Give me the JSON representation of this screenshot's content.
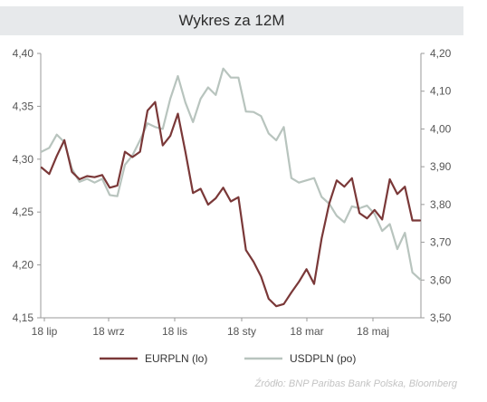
{
  "chart_data": {
    "type": "line",
    "title": "Wykres za 12M",
    "x_labels": [
      "18 lip",
      "18 wrz",
      "18 lis",
      "18 sty",
      "18 mar",
      "18 maj"
    ],
    "y_left": {
      "min": 4.15,
      "max": 4.4,
      "ticks": [
        "4,40",
        "4,35",
        "4,30",
        "4,25",
        "4,20",
        "4,15"
      ]
    },
    "y_right": {
      "min": 3.5,
      "max": 4.2,
      "ticks": [
        "4,20",
        "4,10",
        "4,00",
        "3,90",
        "3,80",
        "3,70",
        "3,60",
        "3,50"
      ]
    },
    "grid": false,
    "legend_position": "bottom",
    "series": [
      {
        "name": "EURPLN (lo)",
        "axis": "left",
        "color": "#7a3838",
        "values": [
          4.292,
          4.286,
          4.303,
          4.318,
          4.288,
          4.281,
          4.284,
          4.283,
          4.285,
          4.273,
          4.275,
          4.307,
          4.302,
          4.307,
          4.346,
          4.354,
          4.313,
          4.322,
          4.343,
          4.307,
          4.268,
          4.272,
          4.257,
          4.263,
          4.273,
          4.26,
          4.264,
          4.214,
          4.203,
          4.189,
          4.168,
          4.161,
          4.163,
          4.174,
          4.184,
          4.196,
          4.182,
          4.225,
          4.258,
          4.28,
          4.274,
          4.282,
          4.249,
          4.244,
          4.252,
          4.243,
          4.281,
          4.267,
          4.274,
          4.242,
          4.242
        ]
      },
      {
        "name": "USDPLN (po)",
        "axis": "right",
        "color": "#b8c4be",
        "values": [
          3.94,
          3.95,
          3.985,
          3.965,
          3.895,
          3.86,
          3.868,
          3.858,
          3.868,
          3.825,
          3.822,
          3.905,
          3.93,
          3.97,
          4.015,
          4.005,
          4.0,
          4.08,
          4.14,
          4.07,
          4.018,
          4.08,
          4.11,
          4.09,
          4.16,
          4.136,
          4.136,
          4.046,
          4.045,
          4.034,
          3.988,
          3.97,
          4.005,
          3.87,
          3.858,
          3.864,
          3.87,
          3.82,
          3.802,
          3.77,
          3.753,
          3.795,
          3.79,
          3.797,
          3.775,
          3.73,
          3.748,
          3.682,
          3.725,
          3.62,
          3.602
        ]
      }
    ]
  },
  "source": "Źródło:  BNP Paribas Bank Polska, Bloomberg"
}
